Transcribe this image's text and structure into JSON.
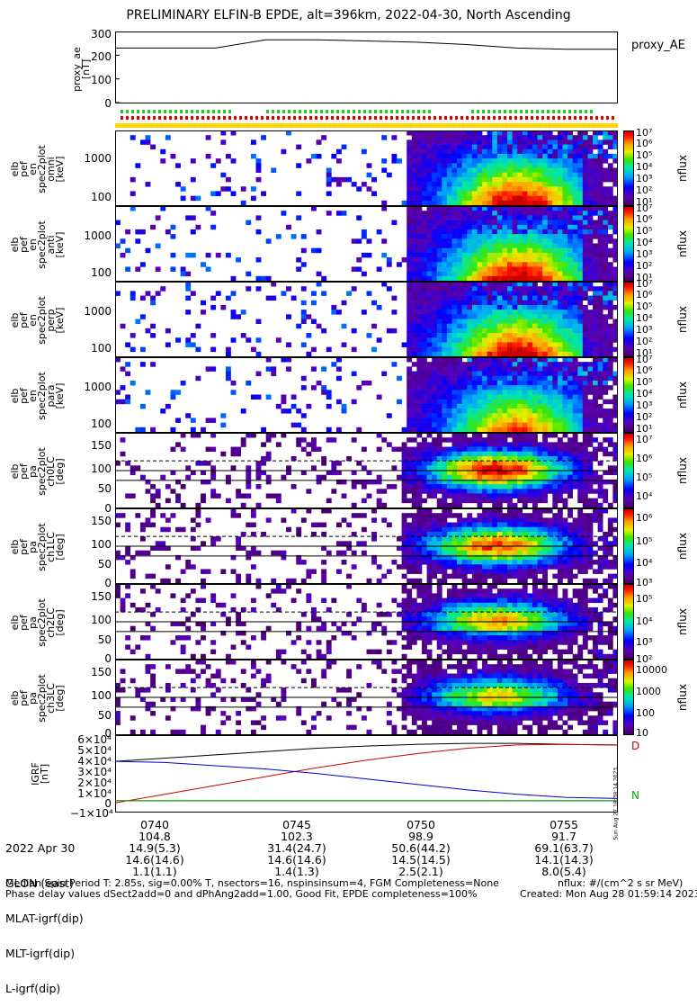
{
  "title": "PRELIMINARY ELFIN-B EPDE, alt=396km, 2022-04-30, North Ascending",
  "panels": {
    "proxy_ae": {
      "ylabel": "proxy_ae\n[nT]",
      "ticks": [
        "300",
        "200",
        "100",
        "0"
      ],
      "side_label": "proxy_AE"
    },
    "en_spec": [
      {
        "ylabel": "elb\npef\nen\nspec2plot\nomni\n[keV]",
        "ticks": [
          "1000",
          "100"
        ]
      },
      {
        "ylabel": "elb\npef\nen\nspec2plot\nanti\n[keV]",
        "ticks": [
          "1000",
          "100"
        ]
      },
      {
        "ylabel": "elb\npef\nen\nspec2plot\nperp\n[keV]",
        "ticks": [
          "1000",
          "100"
        ]
      },
      {
        "ylabel": "elb\npef\nen\nspec2plot\npara\n[keV]",
        "ticks": [
          "1000",
          "100"
        ]
      }
    ],
    "pa_spec": [
      {
        "ylabel": "elb\npef\npa\nspec2plot\nch0LC\n[deg]",
        "ticks": [
          "150",
          "100",
          "50",
          "0"
        ]
      },
      {
        "ylabel": "elb\npef\npa\nspec2plot\nch1LC\n[deg]",
        "ticks": [
          "150",
          "100",
          "50",
          "0"
        ]
      },
      {
        "ylabel": "elb\npef\npa\nspec2plot\nch2LC\n[deg]",
        "ticks": [
          "150",
          "100",
          "50",
          "0"
        ]
      },
      {
        "ylabel": "elb\npef\npa\nspec2plot\nch3LC\n[deg]",
        "ticks": [
          "150",
          "100",
          "50",
          "0"
        ]
      }
    ],
    "igrf": {
      "ylabel": "IGRF\n[nT]",
      "ticks": [
        "6×10⁴",
        "5×10⁴",
        "4×10⁴",
        "3×10⁴",
        "2×10⁴",
        "1×10⁴",
        "0",
        "−1×10⁴"
      ],
      "side_marks": [
        "D",
        "N"
      ],
      "rot_label": "Sun Aug 27 18:38:14 2023"
    }
  },
  "colorbars": {
    "label": "nflux",
    "en": [
      "10⁷",
      "10⁶",
      "10⁵",
      "10⁴",
      "10³",
      "10²",
      "10¹"
    ],
    "pa0": [
      "10⁷",
      "10⁶",
      "10⁵",
      "10⁴"
    ],
    "pa1": [
      "10⁶",
      "10⁵",
      "10⁴",
      "10³"
    ],
    "pa2": [
      "10⁵",
      "10⁴",
      "10³",
      "10²"
    ],
    "pa3": [
      "10000",
      "1000",
      "100",
      "10"
    ]
  },
  "ephemeris": {
    "row_labels": [
      "2022 Apr 30",
      "GLON (east)",
      "MLAT-igrf(dip)",
      "MLT-igrf(dip)",
      "L-igrf(dip)"
    ],
    "columns": [
      {
        "time": "0740",
        "glon": "104.8",
        "mlat": "14.9(5.3)",
        "mlt": "14.6(14.6)",
        "l": "1.1(1.1)"
      },
      {
        "time": "0745",
        "glon": "102.3",
        "mlat": "31.4(24.7)",
        "mlt": "14.6(14.6)",
        "l": "1.4(1.3)"
      },
      {
        "time": "0750",
        "glon": "98.9",
        "mlat": "50.6(44.2)",
        "mlt": "14.5(14.5)",
        "l": "2.5(2.1)"
      },
      {
        "time": "0755",
        "glon": "91.7",
        "mlat": "69.1(63.7)",
        "mlt": "14.1(14.3)",
        "l": "8.0(5.4)"
      }
    ]
  },
  "footer": {
    "line1": "Median Spin Period T: 2.85s, sig=0.00% T, nsectors=16, nspinsinsum=4, FGM Completeness=None",
    "line2": "Phase delay values dSect2add=0 and dPhAng2add=1.00, Good Fit, EPDE completeness=100%",
    "units": "nflux: #/(cm^2 s sr MeV)",
    "created": "Created: Mon Aug 28 01:59:14 2023"
  },
  "chart_data": [
    {
      "type": "line",
      "title": "proxy_AE",
      "ylabel": "proxy_ae [nT]",
      "ylim": [
        0,
        300
      ],
      "x": [
        "0738",
        "0740",
        "0742",
        "0744",
        "0746",
        "0748",
        "0750",
        "0752",
        "0754",
        "0756",
        "0757"
      ],
      "series": [
        {
          "values": [
            230,
            230,
            230,
            265,
            265,
            260,
            255,
            245,
            230,
            225,
            225
          ]
        }
      ],
      "colors": {
        "line": "#000000"
      }
    },
    {
      "type": "heatmap",
      "ylabel": "elb pef en spec2plot omni [keV]",
      "ylim": [
        60,
        7000
      ],
      "log_y": true,
      "z_range": [
        "10^1",
        "10^7"
      ],
      "colorbar": "nflux"
    },
    {
      "type": "heatmap",
      "ylabel": "elb pef en spec2plot anti [keV]",
      "ylim": [
        60,
        7000
      ],
      "log_y": true,
      "z_range": [
        "10^1",
        "10^7"
      ],
      "colorbar": "nflux"
    },
    {
      "type": "heatmap",
      "ylabel": "elb pef en spec2plot perp [keV]",
      "ylim": [
        60,
        7000
      ],
      "log_y": true,
      "z_range": [
        "10^1",
        "10^7"
      ],
      "colorbar": "nflux"
    },
    {
      "type": "heatmap",
      "ylabel": "elb pef en spec2plot para [keV]",
      "ylim": [
        60,
        7000
      ],
      "log_y": true,
      "z_range": [
        "10^1",
        "10^7"
      ],
      "colorbar": "nflux"
    },
    {
      "type": "heatmap",
      "ylabel": "elb pef pa spec2plot ch0LC [deg]",
      "ylim": [
        0,
        180
      ],
      "colorbar": "nflux"
    },
    {
      "type": "heatmap",
      "ylabel": "elb pef pa spec2plot ch1LC [deg]",
      "ylim": [
        0,
        180
      ],
      "colorbar": "nflux"
    },
    {
      "type": "heatmap",
      "ylabel": "elb pef pa spec2plot ch2LC [deg]",
      "ylim": [
        0,
        180
      ],
      "colorbar": "nflux"
    },
    {
      "type": "heatmap",
      "ylabel": "elb pef pa spec2plot ch3LC [deg]",
      "ylim": [
        0,
        180
      ],
      "colorbar": "nflux"
    },
    {
      "type": "line",
      "ylabel": "IGRF [nT]",
      "ylim": [
        -10000,
        60000
      ],
      "x": [
        "0738",
        "0740",
        "0742",
        "0744",
        "0746",
        "0748",
        "0750",
        "0752",
        "0754",
        "0756",
        "0757"
      ],
      "series": [
        {
          "color": "#000000",
          "values": [
            36000,
            39000,
            42000,
            45000,
            48000,
            50000,
            51500,
            52500,
            52500,
            51500,
            51000
          ]
        },
        {
          "color": "#cc0000",
          "values": [
            -2000,
            6000,
            14000,
            22000,
            30000,
            37000,
            43000,
            48000,
            51000,
            51500,
            51000
          ]
        },
        {
          "color": "#0000cc",
          "values": [
            36000,
            35000,
            32000,
            29000,
            25000,
            20000,
            15000,
            10000,
            6000,
            3000,
            2000
          ]
        },
        {
          "color": "#00aa00",
          "values": [
            0,
            0,
            0,
            0,
            0,
            0,
            0,
            0,
            0,
            0,
            0
          ]
        }
      ]
    }
  ]
}
